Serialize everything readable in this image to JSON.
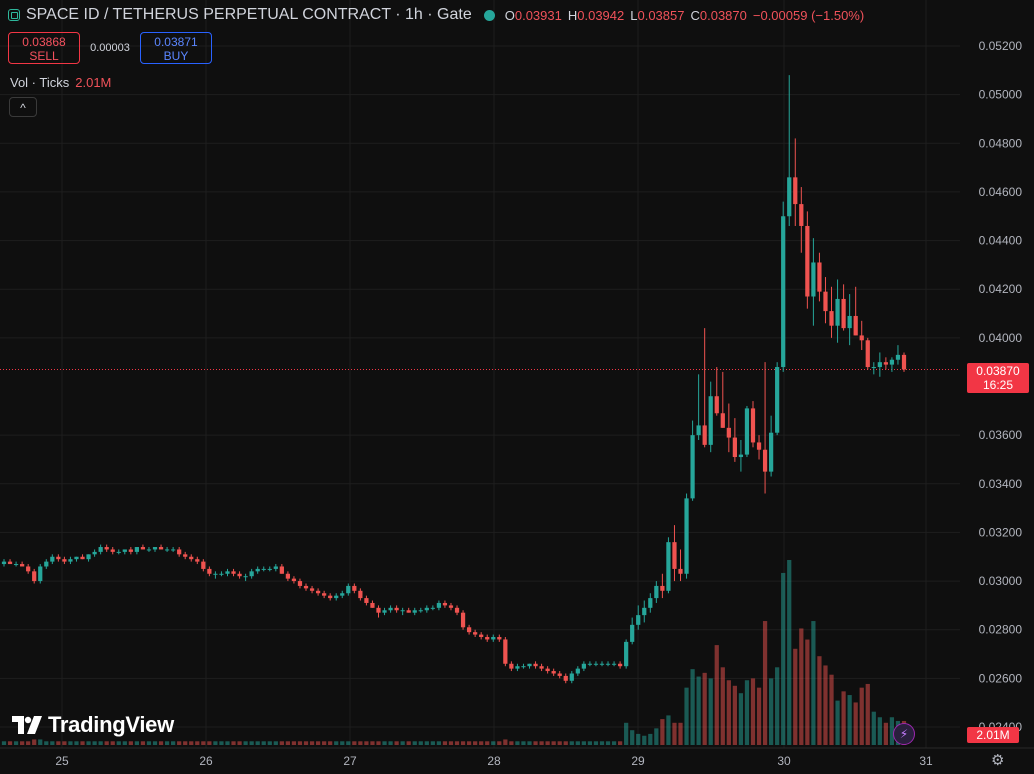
{
  "header": {
    "symbol_title": "SPACE ID / TETHERUS PERPETUAL CONTRACT · 1h · Gate",
    "ohlc": [
      {
        "key": "O",
        "value": "0.03931"
      },
      {
        "key": "H",
        "value": "0.03942"
      },
      {
        "key": "L",
        "value": "0.03857"
      },
      {
        "key": "C",
        "value": "0.03870"
      }
    ],
    "change": "−0.00059 (−1.50%)"
  },
  "trade": {
    "sell_price": "0.03868",
    "sell_label": "SELL",
    "spread": "0.00003",
    "buy_price": "0.03871",
    "buy_label": "BUY"
  },
  "volume_legend": {
    "label": "Vol · Ticks",
    "value": "2.01M"
  },
  "collapse_glyph": "^",
  "logo_text": "TradingView",
  "last_price": {
    "price": "0.03870",
    "countdown": "16:25"
  },
  "last_volume": "2.01M",
  "colors": {
    "up": "#26a69a",
    "down": "#ef5350",
    "background": "#0f0f0f",
    "grid": "#1e1e1e",
    "price_line": "#f23645"
  },
  "icons": [
    "symbol-icon",
    "live-dot-icon",
    "collapse-chevron-icon",
    "tradingview-logo-icon",
    "flash-icon",
    "gear-icon"
  ],
  "chart_data": {
    "type": "candlestick",
    "title": "SPACE ID / TETHERUS PERPETUAL CONTRACT · 1h · Gate",
    "interval": "1h",
    "y_axis_ticks": [
      "0.05200",
      "0.05000",
      "0.04800",
      "0.04600",
      "0.04400",
      "0.04200",
      "0.04000",
      "0.03600",
      "0.03400",
      "0.03200",
      "0.03000",
      "0.02800",
      "0.02600",
      "0.02400"
    ],
    "x_axis_ticks": [
      "25",
      "26",
      "27",
      "28",
      "29",
      "30",
      "31"
    ],
    "ylim": [
      0.0234,
      0.0524
    ],
    "volume_max": 1.0,
    "grid": true,
    "candles": [
      {
        "o": 0.0307,
        "h": 0.0309,
        "l": 0.0306,
        "c": 0.0308,
        "v": 0.02
      },
      {
        "o": 0.0308,
        "h": 0.0309,
        "l": 0.0307,
        "c": 0.0307,
        "v": 0.02
      },
      {
        "o": 0.0307,
        "h": 0.0308,
        "l": 0.0306,
        "c": 0.0307,
        "v": 0.02
      },
      {
        "o": 0.0307,
        "h": 0.0308,
        "l": 0.0306,
        "c": 0.0306,
        "v": 0.02
      },
      {
        "o": 0.0306,
        "h": 0.0307,
        "l": 0.0303,
        "c": 0.0304,
        "v": 0.02
      },
      {
        "o": 0.0304,
        "h": 0.0305,
        "l": 0.0299,
        "c": 0.03,
        "v": 0.03
      },
      {
        "o": 0.03,
        "h": 0.0307,
        "l": 0.0299,
        "c": 0.0306,
        "v": 0.03
      },
      {
        "o": 0.0306,
        "h": 0.0309,
        "l": 0.0305,
        "c": 0.0308,
        "v": 0.02
      },
      {
        "o": 0.0308,
        "h": 0.0311,
        "l": 0.0307,
        "c": 0.031,
        "v": 0.02
      },
      {
        "o": 0.031,
        "h": 0.0311,
        "l": 0.0308,
        "c": 0.0309,
        "v": 0.02
      },
      {
        "o": 0.0309,
        "h": 0.031,
        "l": 0.0307,
        "c": 0.0308,
        "v": 0.02
      },
      {
        "o": 0.0308,
        "h": 0.031,
        "l": 0.0307,
        "c": 0.0309,
        "v": 0.02
      },
      {
        "o": 0.0309,
        "h": 0.031,
        "l": 0.0308,
        "c": 0.031,
        "v": 0.02
      },
      {
        "o": 0.031,
        "h": 0.0311,
        "l": 0.0309,
        "c": 0.0309,
        "v": 0.02
      },
      {
        "o": 0.0309,
        "h": 0.0311,
        "l": 0.0308,
        "c": 0.0311,
        "v": 0.02
      },
      {
        "o": 0.0311,
        "h": 0.0313,
        "l": 0.031,
        "c": 0.0312,
        "v": 0.02
      },
      {
        "o": 0.0312,
        "h": 0.0315,
        "l": 0.0311,
        "c": 0.0314,
        "v": 0.02
      },
      {
        "o": 0.0314,
        "h": 0.0315,
        "l": 0.0312,
        "c": 0.0313,
        "v": 0.02
      },
      {
        "o": 0.0313,
        "h": 0.0314,
        "l": 0.0311,
        "c": 0.0312,
        "v": 0.02
      },
      {
        "o": 0.0312,
        "h": 0.0313,
        "l": 0.0311,
        "c": 0.0312,
        "v": 0.02
      },
      {
        "o": 0.0312,
        "h": 0.0313,
        "l": 0.0311,
        "c": 0.0313,
        "v": 0.02
      },
      {
        "o": 0.0313,
        "h": 0.0314,
        "l": 0.0311,
        "c": 0.0312,
        "v": 0.02
      },
      {
        "o": 0.0312,
        "h": 0.0314,
        "l": 0.0311,
        "c": 0.0314,
        "v": 0.02
      },
      {
        "o": 0.0314,
        "h": 0.0315,
        "l": 0.0313,
        "c": 0.0313,
        "v": 0.02
      },
      {
        "o": 0.0313,
        "h": 0.0314,
        "l": 0.0312,
        "c": 0.0313,
        "v": 0.02
      },
      {
        "o": 0.0313,
        "h": 0.0314,
        "l": 0.0312,
        "c": 0.0314,
        "v": 0.02
      },
      {
        "o": 0.0314,
        "h": 0.0315,
        "l": 0.0313,
        "c": 0.0313,
        "v": 0.02
      },
      {
        "o": 0.0313,
        "h": 0.0314,
        "l": 0.0312,
        "c": 0.0313,
        "v": 0.02
      },
      {
        "o": 0.0313,
        "h": 0.0314,
        "l": 0.0312,
        "c": 0.0313,
        "v": 0.02
      },
      {
        "o": 0.0313,
        "h": 0.0314,
        "l": 0.031,
        "c": 0.0311,
        "v": 0.02
      },
      {
        "o": 0.0311,
        "h": 0.0312,
        "l": 0.0309,
        "c": 0.031,
        "v": 0.02
      },
      {
        "o": 0.031,
        "h": 0.0311,
        "l": 0.0308,
        "c": 0.0309,
        "v": 0.02
      },
      {
        "o": 0.0309,
        "h": 0.031,
        "l": 0.0307,
        "c": 0.0308,
        "v": 0.02
      },
      {
        "o": 0.0308,
        "h": 0.0309,
        "l": 0.0304,
        "c": 0.0305,
        "v": 0.02
      },
      {
        "o": 0.0305,
        "h": 0.0306,
        "l": 0.0302,
        "c": 0.0303,
        "v": 0.02
      },
      {
        "o": 0.0303,
        "h": 0.0304,
        "l": 0.0301,
        "c": 0.0303,
        "v": 0.02
      },
      {
        "o": 0.0303,
        "h": 0.0304,
        "l": 0.0302,
        "c": 0.0303,
        "v": 0.02
      },
      {
        "o": 0.0303,
        "h": 0.0305,
        "l": 0.0302,
        "c": 0.0304,
        "v": 0.02
      },
      {
        "o": 0.0304,
        "h": 0.0305,
        "l": 0.0302,
        "c": 0.0303,
        "v": 0.02
      },
      {
        "o": 0.0303,
        "h": 0.0304,
        "l": 0.0301,
        "c": 0.0302,
        "v": 0.02
      },
      {
        "o": 0.0302,
        "h": 0.0303,
        "l": 0.03,
        "c": 0.0302,
        "v": 0.02
      },
      {
        "o": 0.0302,
        "h": 0.0305,
        "l": 0.0301,
        "c": 0.0304,
        "v": 0.02
      },
      {
        "o": 0.0304,
        "h": 0.0306,
        "l": 0.0303,
        "c": 0.0305,
        "v": 0.02
      },
      {
        "o": 0.0305,
        "h": 0.0306,
        "l": 0.0304,
        "c": 0.0305,
        "v": 0.02
      },
      {
        "o": 0.0305,
        "h": 0.0306,
        "l": 0.0304,
        "c": 0.0305,
        "v": 0.02
      },
      {
        "o": 0.0305,
        "h": 0.0307,
        "l": 0.0304,
        "c": 0.0306,
        "v": 0.02
      },
      {
        "o": 0.0306,
        "h": 0.0307,
        "l": 0.0303,
        "c": 0.0303,
        "v": 0.02
      },
      {
        "o": 0.0303,
        "h": 0.0304,
        "l": 0.03,
        "c": 0.0301,
        "v": 0.02
      },
      {
        "o": 0.0301,
        "h": 0.0302,
        "l": 0.0299,
        "c": 0.03,
        "v": 0.02
      },
      {
        "o": 0.03,
        "h": 0.0301,
        "l": 0.0297,
        "c": 0.0298,
        "v": 0.02
      },
      {
        "o": 0.0298,
        "h": 0.0299,
        "l": 0.0296,
        "c": 0.0297,
        "v": 0.02
      },
      {
        "o": 0.0297,
        "h": 0.0298,
        "l": 0.0295,
        "c": 0.0296,
        "v": 0.02
      },
      {
        "o": 0.0296,
        "h": 0.0297,
        "l": 0.0294,
        "c": 0.0295,
        "v": 0.02
      },
      {
        "o": 0.0295,
        "h": 0.0296,
        "l": 0.0293,
        "c": 0.0294,
        "v": 0.02
      },
      {
        "o": 0.0294,
        "h": 0.0295,
        "l": 0.0292,
        "c": 0.0293,
        "v": 0.02
      },
      {
        "o": 0.0293,
        "h": 0.0295,
        "l": 0.0292,
        "c": 0.0294,
        "v": 0.02
      },
      {
        "o": 0.0294,
        "h": 0.0296,
        "l": 0.0293,
        "c": 0.0295,
        "v": 0.02
      },
      {
        "o": 0.0295,
        "h": 0.0299,
        "l": 0.0294,
        "c": 0.0298,
        "v": 0.02
      },
      {
        "o": 0.0298,
        "h": 0.0299,
        "l": 0.0295,
        "c": 0.0296,
        "v": 0.02
      },
      {
        "o": 0.0296,
        "h": 0.0297,
        "l": 0.0292,
        "c": 0.0293,
        "v": 0.02
      },
      {
        "o": 0.0293,
        "h": 0.0294,
        "l": 0.029,
        "c": 0.0291,
        "v": 0.02
      },
      {
        "o": 0.0291,
        "h": 0.0292,
        "l": 0.0289,
        "c": 0.0289,
        "v": 0.02
      },
      {
        "o": 0.0289,
        "h": 0.029,
        "l": 0.0285,
        "c": 0.0287,
        "v": 0.02
      },
      {
        "o": 0.0287,
        "h": 0.0289,
        "l": 0.0286,
        "c": 0.0288,
        "v": 0.02
      },
      {
        "o": 0.0288,
        "h": 0.029,
        "l": 0.0287,
        "c": 0.0289,
        "v": 0.02
      },
      {
        "o": 0.0289,
        "h": 0.029,
        "l": 0.0287,
        "c": 0.0288,
        "v": 0.02
      },
      {
        "o": 0.0288,
        "h": 0.0289,
        "l": 0.0286,
        "c": 0.0288,
        "v": 0.02
      },
      {
        "o": 0.0288,
        "h": 0.0289,
        "l": 0.0287,
        "c": 0.0287,
        "v": 0.02
      },
      {
        "o": 0.0287,
        "h": 0.0289,
        "l": 0.0286,
        "c": 0.0288,
        "v": 0.02
      },
      {
        "o": 0.0288,
        "h": 0.0289,
        "l": 0.0287,
        "c": 0.0288,
        "v": 0.02
      },
      {
        "o": 0.0288,
        "h": 0.029,
        "l": 0.0287,
        "c": 0.0289,
        "v": 0.02
      },
      {
        "o": 0.0289,
        "h": 0.029,
        "l": 0.0288,
        "c": 0.0289,
        "v": 0.02
      },
      {
        "o": 0.0289,
        "h": 0.0292,
        "l": 0.0288,
        "c": 0.0291,
        "v": 0.02
      },
      {
        "o": 0.0291,
        "h": 0.0292,
        "l": 0.0289,
        "c": 0.029,
        "v": 0.02
      },
      {
        "o": 0.029,
        "h": 0.0291,
        "l": 0.0288,
        "c": 0.0289,
        "v": 0.02
      },
      {
        "o": 0.0289,
        "h": 0.029,
        "l": 0.0286,
        "c": 0.0287,
        "v": 0.02
      },
      {
        "o": 0.0287,
        "h": 0.0288,
        "l": 0.028,
        "c": 0.0281,
        "v": 0.02
      },
      {
        "o": 0.0281,
        "h": 0.0282,
        "l": 0.0278,
        "c": 0.0279,
        "v": 0.02
      },
      {
        "o": 0.0279,
        "h": 0.028,
        "l": 0.0277,
        "c": 0.0278,
        "v": 0.02
      },
      {
        "o": 0.0278,
        "h": 0.0279,
        "l": 0.0276,
        "c": 0.0277,
        "v": 0.02
      },
      {
        "o": 0.0277,
        "h": 0.0278,
        "l": 0.0275,
        "c": 0.0276,
        "v": 0.02
      },
      {
        "o": 0.0276,
        "h": 0.0278,
        "l": 0.0275,
        "c": 0.0277,
        "v": 0.02
      },
      {
        "o": 0.0277,
        "h": 0.0278,
        "l": 0.0275,
        "c": 0.0276,
        "v": 0.02
      },
      {
        "o": 0.0276,
        "h": 0.0277,
        "l": 0.0265,
        "c": 0.0266,
        "v": 0.03
      },
      {
        "o": 0.0266,
        "h": 0.0267,
        "l": 0.0263,
        "c": 0.0264,
        "v": 0.02
      },
      {
        "o": 0.0264,
        "h": 0.0266,
        "l": 0.0263,
        "c": 0.0265,
        "v": 0.02
      },
      {
        "o": 0.0265,
        "h": 0.0266,
        "l": 0.0264,
        "c": 0.0265,
        "v": 0.02
      },
      {
        "o": 0.0265,
        "h": 0.0266,
        "l": 0.0264,
        "c": 0.0266,
        "v": 0.02
      },
      {
        "o": 0.0266,
        "h": 0.0267,
        "l": 0.0264,
        "c": 0.0265,
        "v": 0.02
      },
      {
        "o": 0.0265,
        "h": 0.0266,
        "l": 0.0263,
        "c": 0.0264,
        "v": 0.02
      },
      {
        "o": 0.0264,
        "h": 0.0265,
        "l": 0.0262,
        "c": 0.0263,
        "v": 0.02
      },
      {
        "o": 0.0263,
        "h": 0.0264,
        "l": 0.0261,
        "c": 0.0262,
        "v": 0.02
      },
      {
        "o": 0.0262,
        "h": 0.0263,
        "l": 0.026,
        "c": 0.0261,
        "v": 0.02
      },
      {
        "o": 0.0261,
        "h": 0.0262,
        "l": 0.0258,
        "c": 0.0259,
        "v": 0.02
      },
      {
        "o": 0.0259,
        "h": 0.0263,
        "l": 0.0258,
        "c": 0.0262,
        "v": 0.02
      },
      {
        "o": 0.0262,
        "h": 0.0265,
        "l": 0.0261,
        "c": 0.0264,
        "v": 0.02
      },
      {
        "o": 0.0264,
        "h": 0.0267,
        "l": 0.0263,
        "c": 0.0266,
        "v": 0.02
      },
      {
        "o": 0.0266,
        "h": 0.0267,
        "l": 0.0265,
        "c": 0.0266,
        "v": 0.02
      },
      {
        "o": 0.0266,
        "h": 0.0267,
        "l": 0.0265,
        "c": 0.0266,
        "v": 0.02
      },
      {
        "o": 0.0266,
        "h": 0.0267,
        "l": 0.0265,
        "c": 0.0266,
        "v": 0.02
      },
      {
        "o": 0.0266,
        "h": 0.0267,
        "l": 0.0265,
        "c": 0.0266,
        "v": 0.02
      },
      {
        "o": 0.0266,
        "h": 0.0267,
        "l": 0.0265,
        "c": 0.0266,
        "v": 0.02
      },
      {
        "o": 0.0266,
        "h": 0.0267,
        "l": 0.0264,
        "c": 0.0265,
        "v": 0.02
      },
      {
        "o": 0.0265,
        "h": 0.0276,
        "l": 0.0264,
        "c": 0.0275,
        "v": 0.12
      },
      {
        "o": 0.0275,
        "h": 0.0285,
        "l": 0.0274,
        "c": 0.0282,
        "v": 0.08
      },
      {
        "o": 0.0282,
        "h": 0.029,
        "l": 0.028,
        "c": 0.0286,
        "v": 0.06
      },
      {
        "o": 0.0286,
        "h": 0.0292,
        "l": 0.0283,
        "c": 0.0289,
        "v": 0.05
      },
      {
        "o": 0.0289,
        "h": 0.0295,
        "l": 0.0287,
        "c": 0.0293,
        "v": 0.06
      },
      {
        "o": 0.0293,
        "h": 0.03,
        "l": 0.0291,
        "c": 0.0298,
        "v": 0.09
      },
      {
        "o": 0.0298,
        "h": 0.0303,
        "l": 0.0293,
        "c": 0.0296,
        "v": 0.14
      },
      {
        "o": 0.0296,
        "h": 0.0318,
        "l": 0.0295,
        "c": 0.0316,
        "v": 0.16
      },
      {
        "o": 0.0316,
        "h": 0.0323,
        "l": 0.03,
        "c": 0.0305,
        "v": 0.12
      },
      {
        "o": 0.0305,
        "h": 0.0313,
        "l": 0.03,
        "c": 0.0303,
        "v": 0.12
      },
      {
        "o": 0.0303,
        "h": 0.0336,
        "l": 0.0301,
        "c": 0.0334,
        "v": 0.31
      },
      {
        "o": 0.0334,
        "h": 0.0366,
        "l": 0.0333,
        "c": 0.036,
        "v": 0.41
      },
      {
        "o": 0.036,
        "h": 0.0385,
        "l": 0.0358,
        "c": 0.0364,
        "v": 0.37
      },
      {
        "o": 0.0364,
        "h": 0.0404,
        "l": 0.0355,
        "c": 0.0356,
        "v": 0.39
      },
      {
        "o": 0.0356,
        "h": 0.0382,
        "l": 0.0353,
        "c": 0.0376,
        "v": 0.36
      },
      {
        "o": 0.0376,
        "h": 0.0388,
        "l": 0.0368,
        "c": 0.0369,
        "v": 0.54
      },
      {
        "o": 0.0369,
        "h": 0.0386,
        "l": 0.0363,
        "c": 0.0363,
        "v": 0.42
      },
      {
        "o": 0.0363,
        "h": 0.0373,
        "l": 0.0353,
        "c": 0.0359,
        "v": 0.35
      },
      {
        "o": 0.0359,
        "h": 0.0367,
        "l": 0.0349,
        "c": 0.0351,
        "v": 0.32
      },
      {
        "o": 0.0351,
        "h": 0.0358,
        "l": 0.0345,
        "c": 0.0352,
        "v": 0.28
      },
      {
        "o": 0.0352,
        "h": 0.0372,
        "l": 0.0351,
        "c": 0.0371,
        "v": 0.35
      },
      {
        "o": 0.0371,
        "h": 0.0374,
        "l": 0.0355,
        "c": 0.0357,
        "v": 0.36
      },
      {
        "o": 0.0357,
        "h": 0.036,
        "l": 0.035,
        "c": 0.0354,
        "v": 0.31
      },
      {
        "o": 0.0354,
        "h": 0.039,
        "l": 0.0336,
        "c": 0.0345,
        "v": 0.67
      },
      {
        "o": 0.0345,
        "h": 0.0368,
        "l": 0.0343,
        "c": 0.0361,
        "v": 0.36
      },
      {
        "o": 0.0361,
        "h": 0.039,
        "l": 0.036,
        "c": 0.0388,
        "v": 0.42
      },
      {
        "o": 0.0388,
        "h": 0.0456,
        "l": 0.0386,
        "c": 0.045,
        "v": 0.93
      },
      {
        "o": 0.045,
        "h": 0.0508,
        "l": 0.0446,
        "c": 0.0466,
        "v": 1.0
      },
      {
        "o": 0.0466,
        "h": 0.0482,
        "l": 0.0446,
        "c": 0.0455,
        "v": 0.52
      },
      {
        "o": 0.0455,
        "h": 0.0462,
        "l": 0.0435,
        "c": 0.0446,
        "v": 0.63
      },
      {
        "o": 0.0446,
        "h": 0.0452,
        "l": 0.0412,
        "c": 0.0417,
        "v": 0.57
      },
      {
        "o": 0.0417,
        "h": 0.0441,
        "l": 0.0405,
        "c": 0.0431,
        "v": 0.67
      },
      {
        "o": 0.0431,
        "h": 0.0435,
        "l": 0.0415,
        "c": 0.0419,
        "v": 0.48
      },
      {
        "o": 0.0419,
        "h": 0.0425,
        "l": 0.0406,
        "c": 0.0411,
        "v": 0.43
      },
      {
        "o": 0.0411,
        "h": 0.0421,
        "l": 0.04,
        "c": 0.0405,
        "v": 0.38
      },
      {
        "o": 0.0405,
        "h": 0.0424,
        "l": 0.0398,
        "c": 0.0416,
        "v": 0.24
      },
      {
        "o": 0.0416,
        "h": 0.0422,
        "l": 0.0403,
        "c": 0.0404,
        "v": 0.29
      },
      {
        "o": 0.0404,
        "h": 0.0418,
        "l": 0.0397,
        "c": 0.0409,
        "v": 0.27
      },
      {
        "o": 0.0409,
        "h": 0.0421,
        "l": 0.0401,
        "c": 0.0401,
        "v": 0.23
      },
      {
        "o": 0.0401,
        "h": 0.0407,
        "l": 0.0395,
        "c": 0.0399,
        "v": 0.31
      },
      {
        "o": 0.0399,
        "h": 0.04,
        "l": 0.0387,
        "c": 0.0388,
        "v": 0.33
      },
      {
        "o": 0.0388,
        "h": 0.039,
        "l": 0.0385,
        "c": 0.0388,
        "v": 0.18
      },
      {
        "o": 0.0388,
        "h": 0.0394,
        "l": 0.0384,
        "c": 0.039,
        "v": 0.15
      },
      {
        "o": 0.039,
        "h": 0.0392,
        "l": 0.0387,
        "c": 0.0389,
        "v": 0.12
      },
      {
        "o": 0.0389,
        "h": 0.0392,
        "l": 0.0386,
        "c": 0.0391,
        "v": 0.15
      },
      {
        "o": 0.0391,
        "h": 0.0397,
        "l": 0.0389,
        "c": 0.0393,
        "v": 0.13
      },
      {
        "o": 0.0393,
        "h": 0.0394,
        "l": 0.0386,
        "c": 0.0387,
        "v": 0.13
      }
    ]
  }
}
